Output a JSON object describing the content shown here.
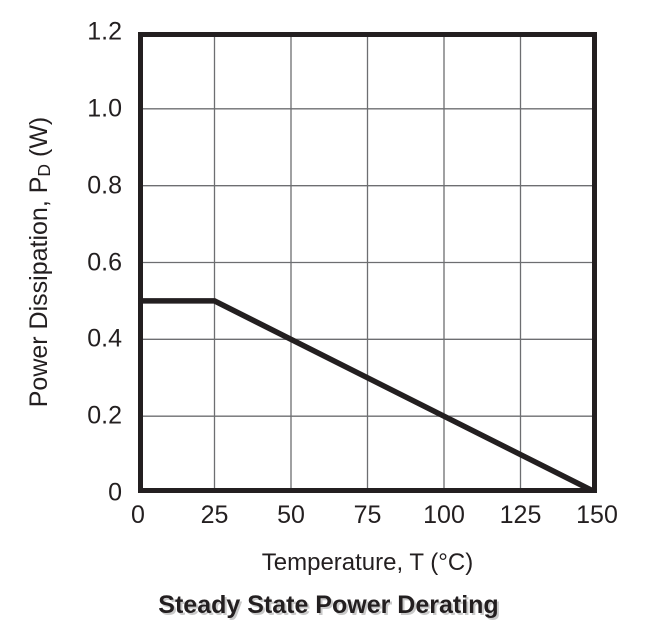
{
  "figure": {
    "title": "Steady State Power Derating",
    "x_axis_title": "Temperature, T (°C)",
    "y_axis_title_parts": {
      "pre": "Power Dissipation, P",
      "sub": "D",
      "post": " (W)"
    }
  },
  "colors": {
    "text": "#231f20",
    "frame": "#231f20",
    "line": "#231f20",
    "grid": "#6d6e71",
    "background": "#ffffff"
  },
  "chart_data": {
    "type": "line",
    "title": "Steady State Power Derating",
    "xlabel": "Temperature, T (°C)",
    "ylabel": "Power Dissipation, PD (W)",
    "xlim": [
      0,
      150
    ],
    "ylim": [
      0,
      1.2
    ],
    "xticks": [
      0,
      25,
      50,
      75,
      100,
      125,
      150
    ],
    "yticks": [
      0,
      0.2,
      0.4,
      0.6,
      0.8,
      1.0,
      1.2
    ],
    "xtick_labels": [
      "0",
      "25",
      "50",
      "75",
      "100",
      "125",
      "150"
    ],
    "ytick_labels": [
      "0",
      "0.2",
      "0.4",
      "0.6",
      "0.8",
      "1.0",
      "1.2"
    ],
    "grid": true,
    "legend": "none",
    "series": [
      {
        "name": "steady-state-power-derating",
        "points": [
          [
            0,
            0.5
          ],
          [
            25,
            0.5
          ],
          [
            150,
            0
          ]
        ]
      }
    ]
  }
}
